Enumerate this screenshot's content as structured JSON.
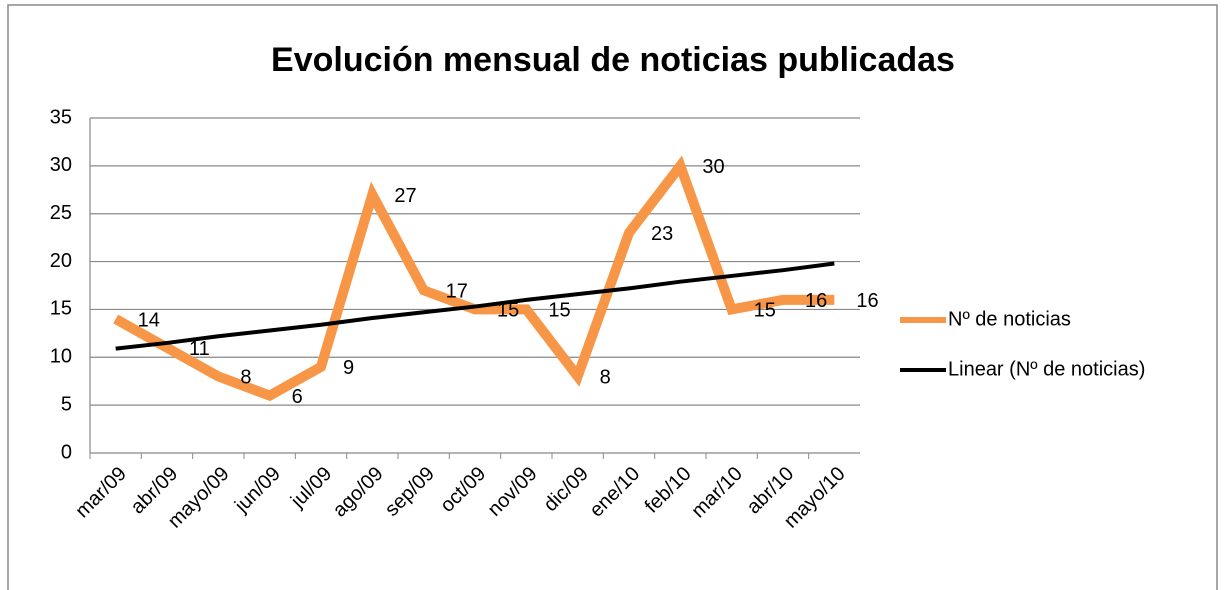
{
  "chart_data": {
    "type": "line",
    "title": "Evolución mensual de noticias publicadas",
    "categories": [
      "mar/09",
      "abr/09",
      "mayo/09",
      "jun/09",
      "jul/09",
      "ago/09",
      "sep/09",
      "oct/09",
      "nov/09",
      "dic/09",
      "ene/10",
      "feb/10",
      "mar/10",
      "abr/10",
      "mayo/10"
    ],
    "series": [
      {
        "name": "Nº de noticias",
        "color": "#f79646",
        "values": [
          14,
          11,
          8,
          6,
          9,
          27,
          17,
          15,
          15,
          8,
          23,
          30,
          15,
          16,
          16
        ]
      },
      {
        "name": "Linear (Nº de noticias)",
        "color": "#000000",
        "values": [
          10.9,
          11.5,
          12.2,
          12.8,
          13.4,
          14.1,
          14.7,
          15.3,
          16.0,
          16.6,
          17.2,
          17.9,
          18.5,
          19.1,
          19.8
        ]
      }
    ],
    "ylim": [
      0,
      35
    ],
    "yticks": [
      0,
      5,
      10,
      15,
      20,
      25,
      30,
      35
    ],
    "grid": true,
    "legend": "right"
  }
}
